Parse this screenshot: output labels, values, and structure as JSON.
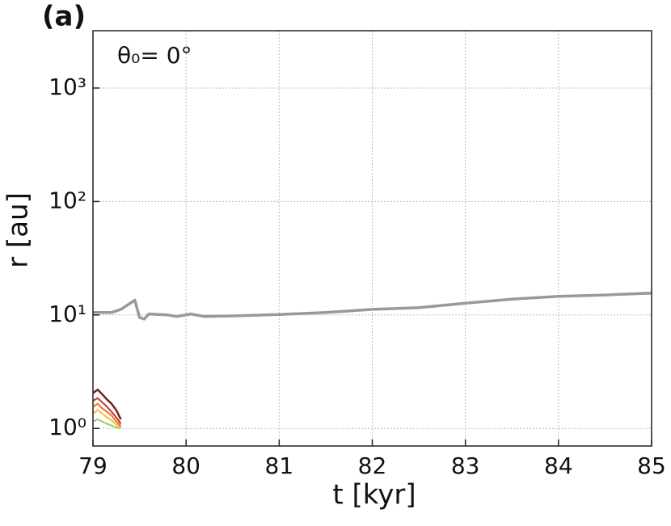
{
  "chart_data": {
    "type": "line",
    "panel_label": "(a)",
    "annotation": "θ₀= 0°",
    "xlabel": "t [kyr]",
    "ylabel": "r [au]",
    "log_y": true,
    "grid": true,
    "xlim": [
      79,
      85
    ],
    "ylim": [
      0.7,
      3200
    ],
    "xticks": [
      79,
      80,
      81,
      82,
      83,
      84,
      85
    ],
    "yticks": [
      {
        "value": 1,
        "label": "10⁰"
      },
      {
        "value": 10,
        "label": "10¹"
      },
      {
        "value": 100,
        "label": "10²"
      },
      {
        "value": 1000,
        "label": "10³"
      }
    ],
    "series": [
      {
        "color": "#999999",
        "width": 3.5,
        "x": [
          79.0,
          79.2,
          79.3,
          79.45,
          79.5,
          79.55,
          79.6,
          79.8,
          79.9,
          80.05,
          80.2,
          80.5,
          81.0,
          81.5,
          82.0,
          82.5,
          83.0,
          83.5,
          84.0,
          84.5,
          85.0
        ],
        "values": [
          10.5,
          10.5,
          11.2,
          13.5,
          9.5,
          9.2,
          10.2,
          10.0,
          9.7,
          10.2,
          9.7,
          9.8,
          10.1,
          10.5,
          11.2,
          11.6,
          12.7,
          13.8,
          14.6,
          15.0,
          15.6
        ]
      },
      {
        "color": "#9acd5a",
        "width": 2,
        "x": [
          79.0,
          79.05,
          79.1,
          79.15,
          79.2,
          79.25,
          79.3
        ],
        "values": [
          1.15,
          1.2,
          1.15,
          1.1,
          1.06,
          1.02,
          1.0
        ]
      },
      {
        "color": "#f2c12e",
        "width": 2,
        "x": [
          79.0,
          79.05,
          79.1,
          79.15,
          79.2,
          79.25,
          79.3
        ],
        "values": [
          1.35,
          1.45,
          1.35,
          1.25,
          1.18,
          1.08,
          1.02
        ]
      },
      {
        "color": "#e8702a",
        "width": 2,
        "x": [
          79.0,
          79.05,
          79.1,
          79.15,
          79.2,
          79.25,
          79.3
        ],
        "values": [
          1.55,
          1.65,
          1.5,
          1.4,
          1.3,
          1.15,
          1.05
        ]
      },
      {
        "color": "#c0392b",
        "width": 2,
        "x": [
          79.0,
          79.05,
          79.1,
          79.15,
          79.2,
          79.25,
          79.3
        ],
        "values": [
          1.75,
          1.85,
          1.7,
          1.55,
          1.4,
          1.25,
          1.1
        ]
      },
      {
        "color": "#7b1f1f",
        "width": 2.5,
        "x": [
          79.0,
          79.05,
          79.1,
          79.15,
          79.2,
          79.25,
          79.3
        ],
        "values": [
          2.05,
          2.2,
          2.0,
          1.8,
          1.65,
          1.45,
          1.2
        ]
      }
    ]
  }
}
